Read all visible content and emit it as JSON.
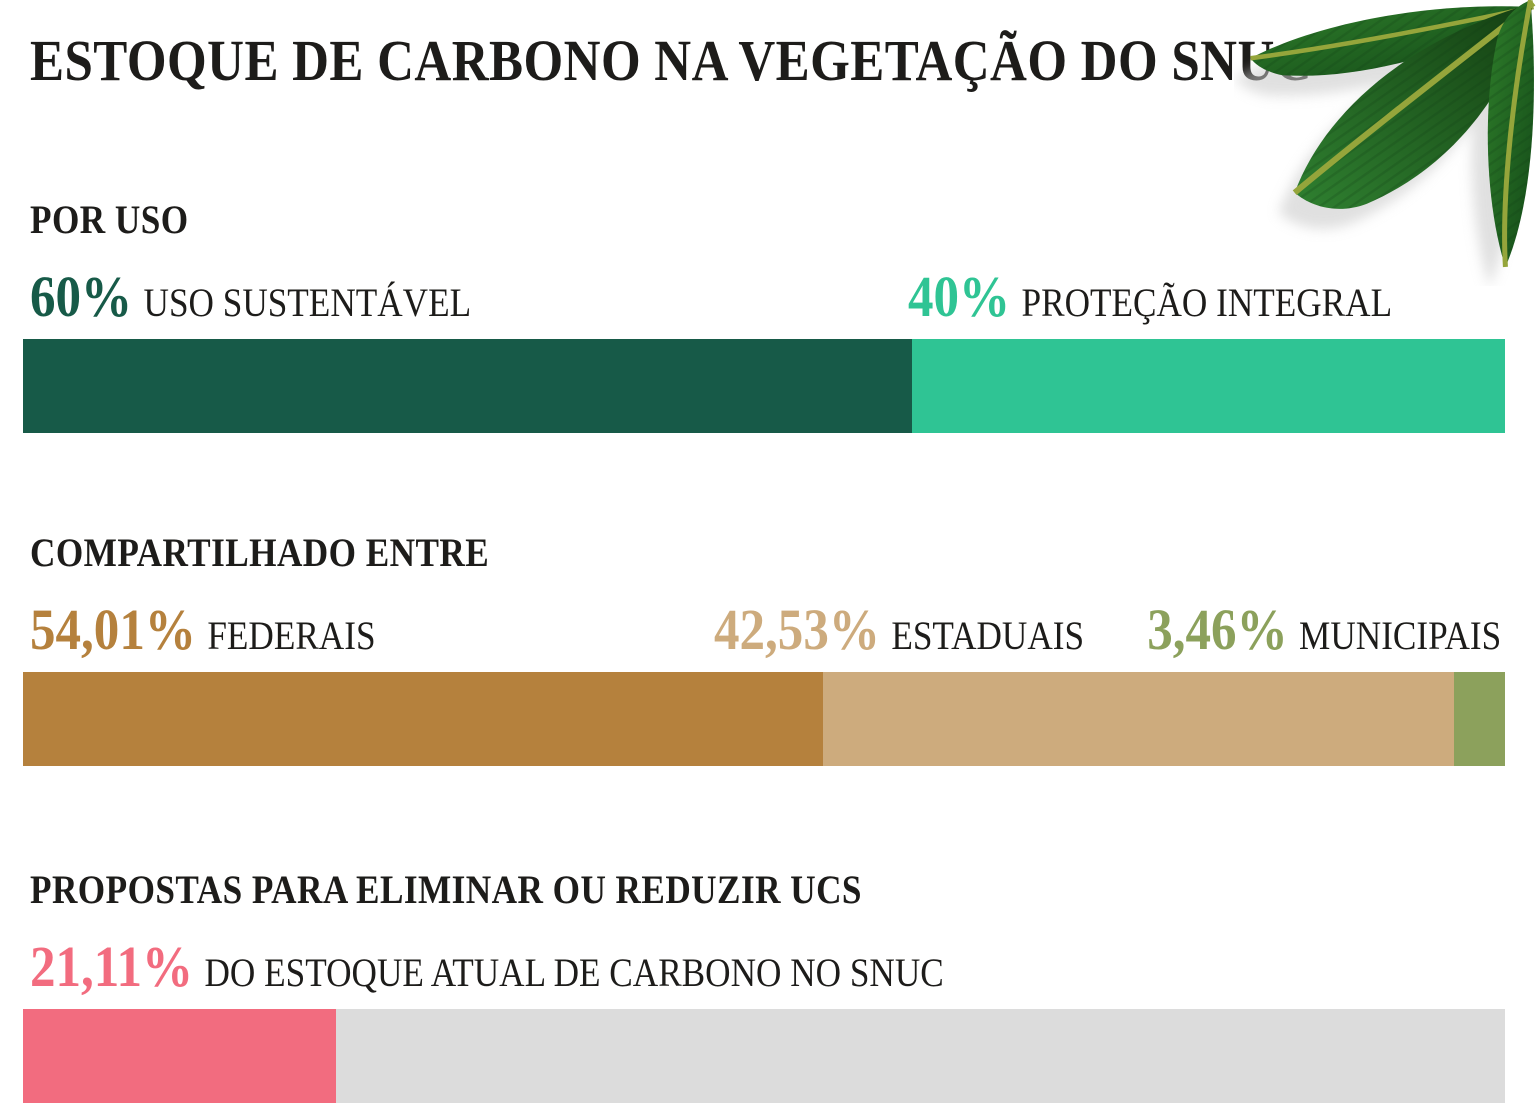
{
  "title": "ESTOQUE DE CARBONO NA VEGETAÇÃO DO SNUC",
  "decoration": {
    "icon": "tropical-leaves-icon"
  },
  "colors": {
    "background": "#FFFFFF",
    "text": "#1D1C1A",
    "track": "#DCDCDC"
  },
  "chart_data": [
    {
      "type": "bar",
      "subtype": "horizontal-stacked",
      "title": "POR USO",
      "xlim": [
        0,
        100
      ],
      "unit": "%",
      "segments": [
        {
          "label": "USO SUSTENTÁVEL",
          "value": 60,
          "display": "60%",
          "color": "#175A48"
        },
        {
          "label": "PROTEÇÃO INTEGRAL",
          "value": 40,
          "display": "40%",
          "color": "#2FC494"
        }
      ]
    },
    {
      "type": "bar",
      "subtype": "horizontal-stacked",
      "title": "COMPARTILHADO ENTRE",
      "xlim": [
        0,
        100
      ],
      "unit": "%",
      "segments": [
        {
          "label": "FEDERAIS",
          "value": 54.01,
          "display": "54,01%",
          "color": "#B5813D"
        },
        {
          "label": "ESTADUAIS",
          "value": 42.53,
          "display": "42,53%",
          "color": "#CDAB7D"
        },
        {
          "label": "MUNICIPAIS",
          "value": 3.46,
          "display": "3,46%",
          "color": "#8CA15C"
        }
      ]
    },
    {
      "type": "bar",
      "subtype": "horizontal-progress",
      "title": "PROPOSTAS PARA ELIMINAR OU REDUZIR UCS",
      "xlim": [
        0,
        100
      ],
      "unit": "%",
      "track_color": "#DCDCDC",
      "segments": [
        {
          "label": "DO ESTOQUE ATUAL DE CARBONO NO SNUC",
          "value": 21.11,
          "display": "21,11%",
          "color": "#F26C7F"
        }
      ]
    }
  ]
}
